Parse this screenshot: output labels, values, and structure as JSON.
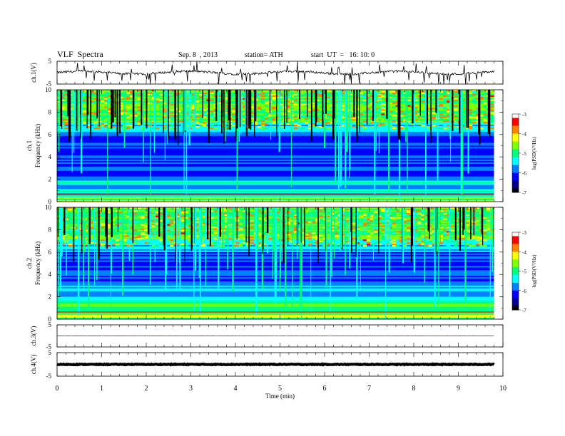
{
  "header": {
    "title": "VLF  Spectra",
    "date": "Sep. 8  , 2013",
    "station": "station= ATH",
    "start_ut": "start  UT  =   16: 10: 0"
  },
  "chart_data": [
    {
      "type": "line",
      "ylabel": "ch.1(V)",
      "ylim": [
        -5,
        5
      ],
      "y_ticks": [
        "5",
        "-5"
      ],
      "baseline": 0,
      "note_values": "noisy trace around ~0 V with frequent negative spikes"
    },
    {
      "type": "heatmap",
      "ylabel": "ch.1\nFrequency (kHz)",
      "ylim": [
        0,
        10
      ],
      "y_ticks": [
        "0",
        "2",
        "4",
        "6",
        "8",
        "10"
      ],
      "colorbar": {
        "label": "log(PSD(V²/Hz)",
        "range": [
          -7,
          -3
        ],
        "ticks": [
          "-3",
          "-4",
          "-5",
          "-6",
          "-7"
        ]
      }
    },
    {
      "type": "heatmap",
      "ylabel": "ch.2\nFrequency (kHz)",
      "ylim": [
        0,
        10
      ],
      "y_ticks": [
        "0",
        "2",
        "4",
        "6",
        "8",
        "10"
      ],
      "colorbar": {
        "label": "log(PSD(V²/Hz)",
        "range": [
          -7,
          -3
        ],
        "ticks": [
          "-3",
          "-4",
          "-5",
          "-6",
          "-7"
        ]
      }
    },
    {
      "type": "line",
      "ylabel": "ch.3(V)",
      "ylim": [
        -5,
        5
      ],
      "y_ticks": [
        "5",
        "-5"
      ],
      "baseline": 0
    },
    {
      "type": "line",
      "ylabel": "ch.4(V)",
      "ylim": [
        -5,
        5
      ],
      "y_ticks": [
        "5",
        "-5"
      ],
      "baseline": 0
    }
  ],
  "xaxis": {
    "label": "Time  (min)",
    "xlim": [
      0,
      10
    ],
    "ticks": [
      "0",
      "1",
      "2",
      "3",
      "4",
      "5",
      "6",
      "7",
      "8",
      "9",
      "10"
    ],
    "data_end": 9.8
  },
  "colors": {
    "colormap": [
      "#000000",
      "#00008b",
      "#0000ff",
      "#0080ff",
      "#00ffff",
      "#00ff80",
      "#80ff00",
      "#ffff00",
      "#ff8000",
      "#ff0000",
      "#ffffff"
    ]
  }
}
